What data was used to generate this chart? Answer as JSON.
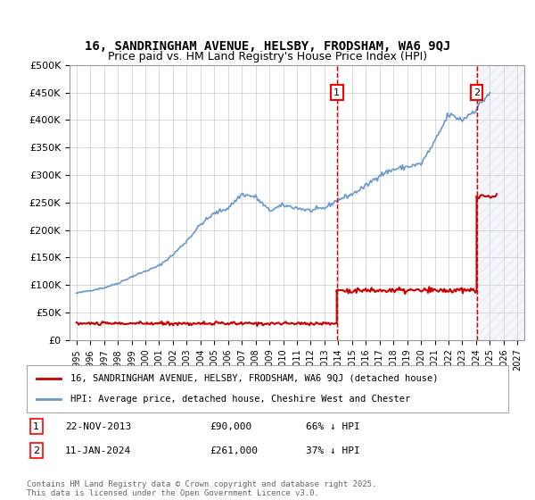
{
  "title": "16, SANDRINGHAM AVENUE, HELSBY, FRODSHAM, WA6 9QJ",
  "subtitle": "Price paid vs. HM Land Registry's House Price Index (HPI)",
  "hpi_color": "#6699cc",
  "price_color": "#cc0000",
  "dashed_color": "#cc0000",
  "marker1_date_x": 2013.9,
  "marker2_date_x": 2024.04,
  "sale1_price": 90000,
  "sale2_price": 261000,
  "sale1_date": "22-NOV-2013",
  "sale2_date": "11-JAN-2024",
  "sale1_label": "66% ↓ HPI",
  "sale2_label": "37% ↓ HPI",
  "ylim_max": 500000,
  "ylim_min": 0,
  "xlim_min": 1994.5,
  "xlim_max": 2027.5,
  "footer": "Contains HM Land Registry data © Crown copyright and database right 2025.\nThis data is licensed under the Open Government Licence v3.0.",
  "legend_label1": "16, SANDRINGHAM AVENUE, HELSBY, FRODSHAM, WA6 9QJ (detached house)",
  "legend_label2": "HPI: Average price, detached house, Cheshire West and Chester",
  "hatch_color": "#aabbdd",
  "background_color": "#ffffff",
  "grid_color": "#cccccc"
}
